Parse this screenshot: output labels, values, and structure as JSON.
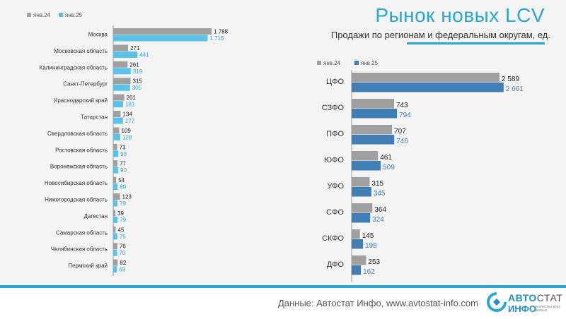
{
  "header": {
    "title": "Рынок новых LCV",
    "subtitle": "Продажи по регионам и федеральным округам, ед."
  },
  "footer": {
    "source": "Данные: Автостат Инфо, www.avtostat-info.com",
    "logo_avto": "АВТО",
    "logo_stat": "СТАТ",
    "logo_info": "ИНФО",
    "logo_tagline": "аналитика всех данных"
  },
  "colors": {
    "jan24": "#a0a0a0",
    "jan25_regions": "#5bc2e7",
    "jan25_districts": "#3f7fb5",
    "accent": "#2aa6d6"
  },
  "chart_data": [
    {
      "type": "bar",
      "orientation": "horizontal",
      "legend": [
        "янв.24",
        "янв.25"
      ],
      "legend_position": "top-left",
      "categories": [
        "Москва",
        "Московская область",
        "Калининградская область",
        "Санкт-Петербург",
        "Краснодарский край",
        "Татарстан",
        "Свердловская область",
        "Ростовская область",
        "Воронежская область",
        "Новосибирская область",
        "Нижегородская область",
        "Дагестан",
        "Самарская область",
        "Челябинская область",
        "Пермский край"
      ],
      "series": [
        {
          "name": "янв.24",
          "values": [
            1788,
            271,
            261,
            315,
            201,
            134,
            109,
            73,
            77,
            54,
            123,
            39,
            45,
            76,
            82
          ],
          "labels": [
            "1 788",
            "271",
            "261",
            "315",
            "201",
            "134",
            "109",
            "73",
            "77",
            "54",
            "123",
            "39",
            "45",
            "76",
            "82"
          ]
        },
        {
          "name": "янв.25",
          "values": [
            1716,
            441,
            319,
            305,
            181,
            177,
            128,
            93,
            90,
            80,
            79,
            79,
            75,
            70,
            69
          ],
          "labels": [
            "1 716",
            "441",
            "319",
            "305",
            "181",
            "177",
            "128",
            "93",
            "90",
            "80",
            "79",
            "79",
            "75",
            "70",
            "69"
          ]
        }
      ],
      "xlim": [
        0,
        1800
      ]
    },
    {
      "type": "bar",
      "orientation": "horizontal",
      "legend": [
        "янв.24",
        "янв.25"
      ],
      "legend_position": "top-left",
      "categories": [
        "ЦФО",
        "СЗФО",
        "ПФО",
        "ЮФО",
        "УФО",
        "СФО",
        "СКФО",
        "ДФО"
      ],
      "series": [
        {
          "name": "янв.24",
          "values": [
            2589,
            743,
            707,
            461,
            315,
            364,
            145,
            253
          ],
          "labels": [
            "2 589",
            "743",
            "707",
            "461",
            "315",
            "364",
            "145",
            "253"
          ]
        },
        {
          "name": "янв.25",
          "values": [
            2661,
            794,
            746,
            509,
            345,
            324,
            198,
            162
          ],
          "labels": [
            "2 661",
            "794",
            "746",
            "509",
            "345",
            "324",
            "198",
            "162"
          ]
        }
      ],
      "xlim": [
        0,
        2700
      ]
    }
  ]
}
